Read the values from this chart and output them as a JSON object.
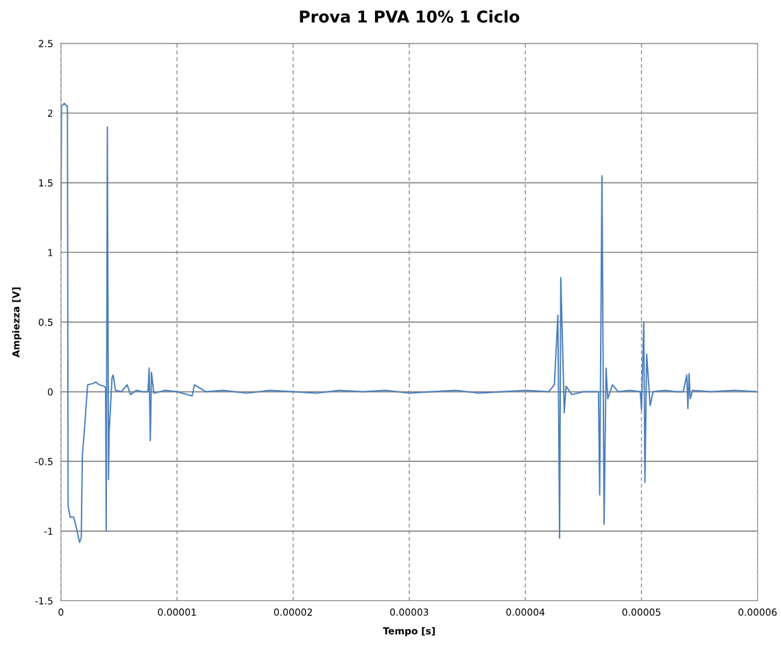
{
  "chart_data": {
    "type": "line",
    "title": "Prova 1 PVA 10% 1 Ciclo",
    "xlabel": "Tempo [s]",
    "ylabel": "Ampiezza [V]",
    "xlim": [
      0,
      6e-05
    ],
    "ylim": [
      -1.5,
      2.5
    ],
    "xticks": [
      0,
      {
        "value": 1e-05,
        "label": "0.00001"
      },
      {
        "value": 2e-05,
        "label": "0.00002"
      },
      {
        "value": 3e-05,
        "label": "0.00003"
      },
      {
        "value": 4e-05,
        "label": "0.00004"
      },
      {
        "value": 5e-05,
        "label": "0.00005"
      },
      {
        "value": 6e-05,
        "label": "0.00006"
      }
    ],
    "yticks": [
      -1.5,
      -1,
      -0.5,
      0,
      0.5,
      1,
      1.5,
      2,
      2.5
    ],
    "grid": true,
    "series": [
      {
        "color": "#4a7ebb",
        "x": [
          0,
          5e-08,
          3e-07,
          5e-07,
          5.6e-07,
          6.2e-07,
          8e-07,
          1.1e-06,
          1.4e-06,
          1.6e-06,
          1.75e-06,
          1.85e-06,
          2e-06,
          2.3e-06,
          2.8e-06,
          3e-06,
          3.3e-06,
          3.7e-06,
          3.85e-06,
          3.9e-06,
          4e-06,
          4.1e-06,
          4.15e-06,
          4.4e-06,
          4.5e-06,
          4.7e-06,
          5.2e-06,
          5.7e-06,
          6e-06,
          6.5e-06,
          7e-06,
          7.5e-06,
          7.6e-06,
          7.7e-06,
          7.8e-06,
          8e-06,
          9e-06,
          1e-05,
          1.13e-05,
          1.15e-05,
          1.25e-05,
          1.4e-05,
          1.6e-05,
          1.8e-05,
          2e-05,
          2.2e-05,
          2.4e-05,
          2.6e-05,
          2.8e-05,
          3e-05,
          3.2e-05,
          3.4e-05,
          3.6e-05,
          3.8e-05,
          4e-05,
          4.2e-05,
          4.25e-05,
          4.28e-05,
          4.295e-05,
          4.305e-05,
          4.32e-05,
          4.335e-05,
          4.35e-05,
          4.4e-05,
          4.5e-05,
          4.63e-05,
          4.64e-05,
          4.66e-05,
          4.678e-05,
          4.695e-05,
          4.71e-05,
          4.75e-05,
          4.8e-05,
          4.9e-05,
          4.99e-05,
          5e-05,
          5.02e-05,
          5.03e-05,
          5.045e-05,
          5.075e-05,
          5.1e-05,
          5.2e-05,
          5.3e-05,
          5.36e-05,
          5.39e-05,
          5.4e-05,
          5.41e-05,
          5.42e-05,
          5.44e-05,
          5.6e-05,
          5.8e-05,
          6e-05
        ],
        "values": [
          1.1,
          2.05,
          2.07,
          2.05,
          2.05,
          -0.82,
          -0.9,
          -0.9,
          -1.0,
          -1.08,
          -1.05,
          -0.45,
          -0.3,
          0.05,
          0.06,
          0.07,
          0.05,
          0.04,
          0.03,
          -1.0,
          1.9,
          -0.63,
          -0.3,
          0.1,
          0.12,
          0.01,
          0.0,
          0.05,
          -0.02,
          0.01,
          0.0,
          0.0,
          0.17,
          -0.35,
          0.14,
          -0.01,
          0.01,
          0.0,
          -0.03,
          0.05,
          0.0,
          0.01,
          -0.01,
          0.01,
          0.0,
          -0.01,
          0.01,
          0.0,
          0.01,
          -0.01,
          0.0,
          0.01,
          -0.01,
          0.0,
          0.01,
          0.0,
          0.05,
          0.55,
          -1.05,
          0.82,
          0.35,
          -0.15,
          0.04,
          -0.02,
          0.0,
          0.0,
          -0.74,
          1.55,
          -0.95,
          0.17,
          -0.05,
          0.05,
          0.0,
          0.01,
          0.0,
          -0.13,
          0.5,
          -0.65,
          0.27,
          -0.1,
          0.0,
          0.01,
          0.0,
          0.0,
          0.12,
          -0.12,
          0.13,
          -0.05,
          0.01,
          0.0,
          0.01,
          0.0
        ]
      }
    ]
  }
}
